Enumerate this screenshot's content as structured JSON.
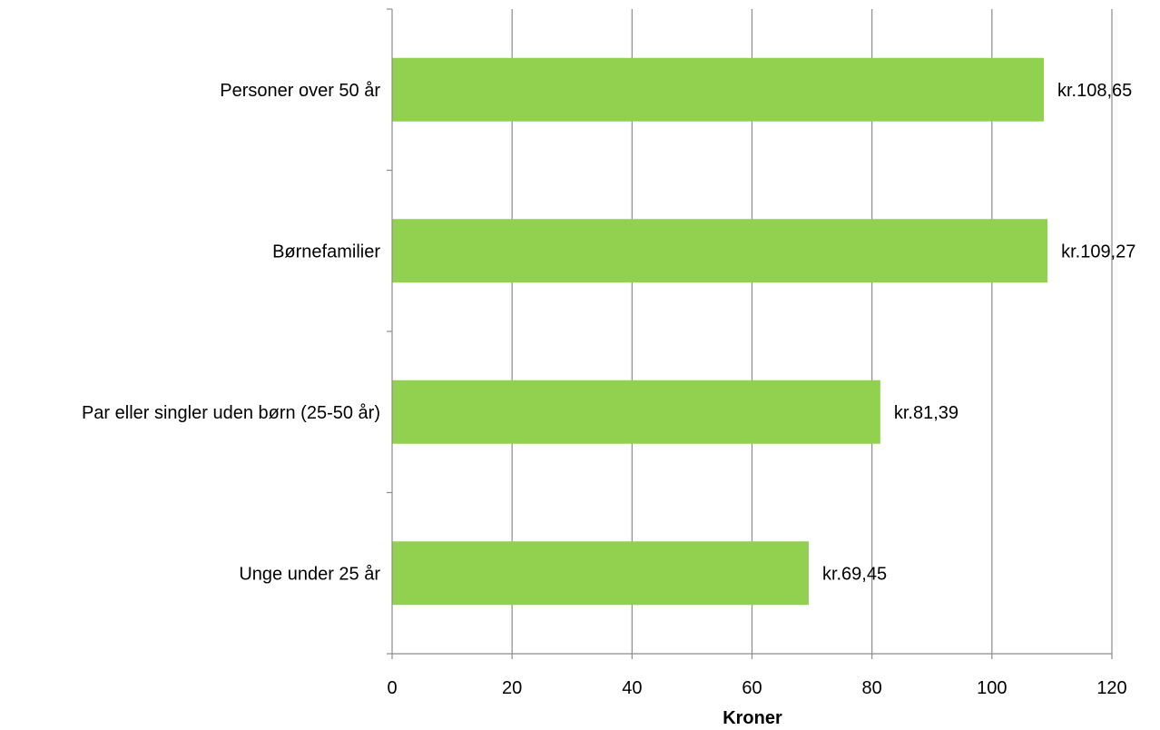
{
  "chart_data": {
    "type": "bar",
    "orientation": "horizontal",
    "title": "",
    "xlabel": "Kroner",
    "ylabel": "",
    "xlim": [
      0,
      120
    ],
    "x_ticks": [
      0,
      20,
      40,
      60,
      80,
      100,
      120
    ],
    "x_tick_labels": [
      "0",
      "20",
      "40",
      "60",
      "80",
      "100",
      "120"
    ],
    "grid": true,
    "legend": "none",
    "bar_color": "#92d050",
    "categories": [
      "Personer over 50 år",
      "Børnefamilier",
      "Par eller singler uden børn (25-50 år)",
      "Unge under 25 år"
    ],
    "values": [
      108.65,
      109.27,
      81.39,
      69.45
    ],
    "data_labels": [
      "kr.108,65",
      "kr.109,27",
      "kr.81,39",
      "kr.69,45"
    ]
  }
}
